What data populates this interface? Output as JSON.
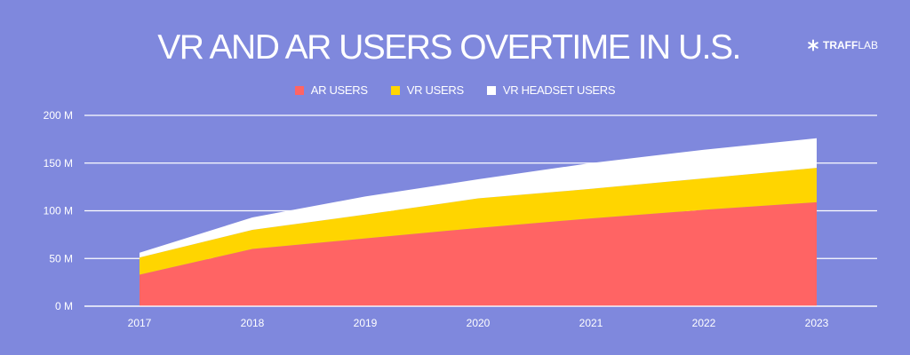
{
  "brand": {
    "name_strong": "TRAFF",
    "name_light": "LAB",
    "icon": "trafflab-logo-icon"
  },
  "colors": {
    "background": "#7f88dd",
    "ar": "#ff6464",
    "vr": "#ffd500",
    "headset": "#ffffff",
    "grid": "#ffffff",
    "text": "#ffffff"
  },
  "chart_data": {
    "type": "area",
    "stacked": true,
    "title": "VR AND AR USERS OVERTIME IN U.S.",
    "xlabel": "",
    "ylabel": "",
    "categories": [
      "2017",
      "2018",
      "2019",
      "2020",
      "2021",
      "2022",
      "2023"
    ],
    "ylim": [
      0,
      200
    ],
    "yticks": [
      0,
      50,
      100,
      150,
      200
    ],
    "ytick_labels": [
      "0 M",
      "50 M",
      "100 M",
      "150 M",
      "200 M"
    ],
    "grid": true,
    "legend_position": "top-center",
    "series": [
      {
        "name": "AR USERS",
        "color": "#ff6464",
        "values": [
          33,
          60,
          71,
          82,
          92,
          101,
          109
        ]
      },
      {
        "name": "VR USERS",
        "color": "#ffd500",
        "values": [
          18,
          20,
          25,
          31,
          31,
          33,
          36
        ]
      },
      {
        "name": "VR HEADSET USERS",
        "color": "#ffffff",
        "values": [
          5,
          13,
          19,
          20,
          27,
          30,
          31
        ]
      }
    ]
  }
}
